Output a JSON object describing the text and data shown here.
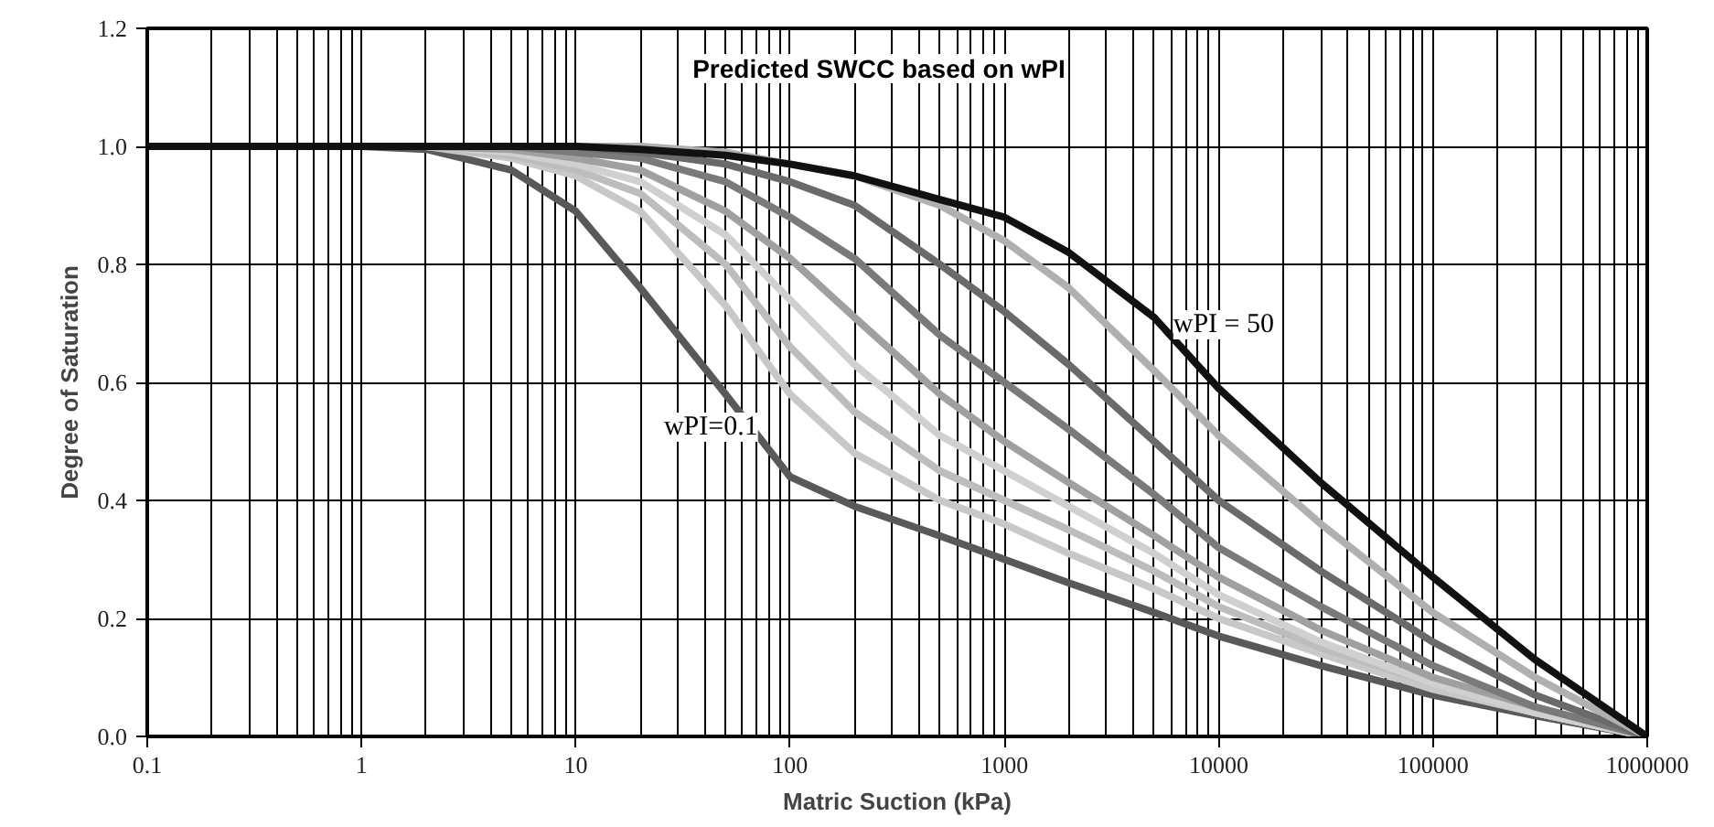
{
  "chart_data": {
    "type": "line",
    "title": "Predicted SWCC based on wPI",
    "xlabel": "Matric Suction (kPa)",
    "ylabel": "Degree of Saturation",
    "log": "x",
    "grid": true,
    "marker": "none",
    "line_style": "solid",
    "x": [
      0.1,
      1,
      2,
      5,
      10,
      20,
      50,
      100,
      200,
      500,
      1000,
      2000,
      5000,
      10000,
      30000,
      100000,
      300000,
      1000000
    ],
    "xlim": [
      0.1,
      1000000
    ],
    "xticks": [
      0.1,
      1,
      10,
      100,
      1000,
      10000,
      100000,
      1000000
    ],
    "ylim": [
      0,
      1.2
    ],
    "yticks": [
      {
        "value": 0,
        "label": "0.0"
      },
      {
        "value": 0.2,
        "label": "0.2"
      },
      {
        "value": 0.4,
        "label": "0.4"
      },
      {
        "value": 0.6,
        "label": "0.6"
      },
      {
        "value": 0.8,
        "label": "0.8"
      },
      {
        "value": 1,
        "label": "1.0"
      },
      {
        "value": 1.2,
        "label": "1.2"
      }
    ],
    "series": [
      {
        "color": "#595959",
        "values": [
          1,
          1,
          0.995,
          0.96,
          0.89,
          0.76,
          0.58,
          0.44,
          0.39,
          0.34,
          0.3,
          0.26,
          0.21,
          0.17,
          0.12,
          0.07,
          0.035,
          0
        ]
      },
      {
        "color": "#c8c8c8",
        "values": [
          1,
          1,
          1,
          0.98,
          0.95,
          0.89,
          0.73,
          0.58,
          0.48,
          0.4,
          0.36,
          0.31,
          0.25,
          0.2,
          0.14,
          0.08,
          0.04,
          0
        ]
      },
      {
        "color": "#bdbdbd",
        "values": [
          1,
          1,
          1,
          0.985,
          0.96,
          0.92,
          0.8,
          0.66,
          0.55,
          0.45,
          0.4,
          0.35,
          0.28,
          0.22,
          0.15,
          0.09,
          0.04,
          0
        ]
      },
      {
        "color": "#d0d0d0",
        "values": [
          1,
          1,
          1,
          0.99,
          0.97,
          0.94,
          0.85,
          0.74,
          0.63,
          0.51,
          0.45,
          0.39,
          0.31,
          0.24,
          0.16,
          0.09,
          0.04,
          0
        ]
      },
      {
        "color": "#a0a0a0",
        "values": [
          1,
          1,
          1,
          0.995,
          0.98,
          0.96,
          0.89,
          0.81,
          0.71,
          0.58,
          0.5,
          0.43,
          0.34,
          0.27,
          0.18,
          0.1,
          0.05,
          0
        ]
      },
      {
        "color": "#7a7a7a",
        "values": [
          1,
          1,
          1,
          1,
          0.99,
          0.98,
          0.94,
          0.88,
          0.81,
          0.68,
          0.6,
          0.52,
          0.41,
          0.32,
          0.22,
          0.12,
          0.05,
          0
        ]
      },
      {
        "color": "#6a6a6a",
        "values": [
          1,
          1,
          1,
          1,
          1,
          0.99,
          0.97,
          0.94,
          0.9,
          0.8,
          0.72,
          0.63,
          0.5,
          0.4,
          0.28,
          0.16,
          0.07,
          0
        ]
      },
      {
        "color": "#b0b0b0",
        "values": [
          1,
          1,
          1,
          1,
          1,
          1,
          0.99,
          0.97,
          0.95,
          0.9,
          0.84,
          0.76,
          0.62,
          0.51,
          0.36,
          0.21,
          0.1,
          0
        ]
      },
      {
        "color": "#111111",
        "values": [
          1,
          1,
          1,
          1,
          1,
          0.995,
          0.985,
          0.97,
          0.95,
          0.91,
          0.88,
          0.82,
          0.71,
          0.59,
          0.43,
          0.27,
          0.13,
          0
        ]
      }
    ],
    "annotations": [
      "wPI=0.1",
      "wPI = 50"
    ]
  }
}
